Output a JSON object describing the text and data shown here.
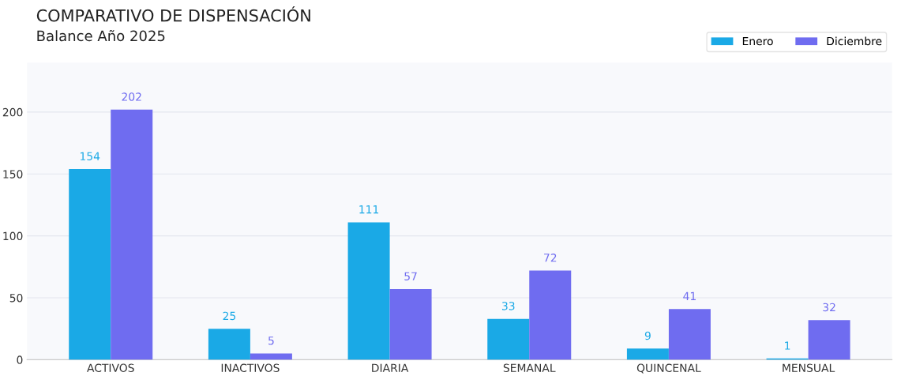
{
  "chart_data": {
    "type": "bar",
    "title": "COMPARATIVO DE DISPENSACIÓN",
    "subtitle": "Balance Año 2025",
    "categories": [
      "ACTIVOS",
      "INACTIVOS",
      "DIARIA",
      "SEMANAL",
      "QUINCENAL",
      "MENSUAL"
    ],
    "series": [
      {
        "name": "Enero",
        "color": "#1aa9e6",
        "values": [
          154,
          25,
          111,
          33,
          9,
          1
        ]
      },
      {
        "name": "Diciembre",
        "color": "#6f6cf0",
        "values": [
          202,
          5,
          57,
          72,
          41,
          32
        ]
      }
    ],
    "ylim": [
      0,
      240
    ],
    "yticks": [
      0,
      50,
      100,
      150,
      200
    ],
    "grid": "y",
    "legend": "top right",
    "data_labels": true
  }
}
